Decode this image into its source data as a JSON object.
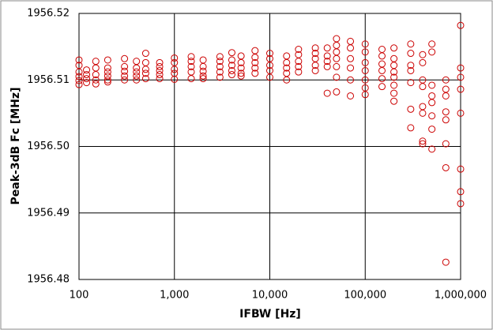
{
  "chart_data": {
    "type": "scatter",
    "xlabel": "IFBW [Hz]",
    "ylabel": "Peak-3dB Fc [MHz]",
    "xscale": "log",
    "grid": true,
    "xlim": [
      100,
      1000000
    ],
    "xticks": [
      100,
      {
        "value": 1000,
        "label": "1,000"
      },
      {
        "value": 10000,
        "label": "10,000"
      },
      {
        "value": 100000,
        "label": "100,000"
      },
      {
        "value": 1000000,
        "label": "1,000,000"
      }
    ],
    "ylim": [
      1956.48,
      1956.52
    ],
    "yticks": [
      1956.48,
      1956.49,
      {
        "value": 1956.5,
        "label": "1956.50"
      },
      1956.51,
      1956.52
    ],
    "series": [
      {
        "color": "#cc0000",
        "x": [
          100,
          100,
          100,
          100,
          100,
          100,
          120,
          120,
          120,
          120,
          150,
          150,
          150,
          150,
          150,
          200,
          200,
          200,
          200,
          200,
          200,
          300,
          300,
          300,
          300,
          300,
          400,
          400,
          400,
          400,
          400,
          500,
          500,
          500,
          500,
          500,
          700,
          700,
          700,
          700,
          700,
          1000,
          1000,
          1000,
          1000,
          1000,
          1500,
          1500,
          1500,
          1500,
          1500,
          2000,
          2000,
          2000,
          2000,
          2000,
          3000,
          3000,
          3000,
          3000,
          3000,
          4000,
          4000,
          4000,
          4000,
          4000,
          5000,
          5000,
          5000,
          5000,
          5000,
          7000,
          7000,
          7000,
          7000,
          7000,
          10000,
          10000,
          10000,
          10000,
          10000,
          15000,
          15000,
          15000,
          15000,
          15000,
          20000,
          20000,
          20000,
          20000,
          20000,
          30000,
          30000,
          30000,
          30000,
          30000,
          40000,
          40000,
          40000,
          40000,
          40000,
          50000,
          50000,
          50000,
          50000,
          50000,
          50000,
          50000,
          70000,
          70000,
          70000,
          70000,
          70000,
          70000,
          100000,
          100000,
          100000,
          100000,
          100000,
          100000,
          100000,
          150000,
          150000,
          150000,
          150000,
          150000,
          150000,
          200000,
          200000,
          200000,
          200000,
          200000,
          200000,
          200000,
          200000,
          300000,
          300000,
          300000,
          300000,
          300000,
          300000,
          300000,
          400000,
          400000,
          400000,
          400000,
          400000,
          400000,
          400000,
          400000,
          500000,
          500000,
          500000,
          500000,
          500000,
          500000,
          500000,
          500000,
          700000,
          700000,
          700000,
          700000,
          700000,
          700000,
          700000,
          700000,
          1000000,
          1000000,
          1000000,
          1000000,
          1000000,
          1000000,
          1000000,
          1000000
        ],
        "values": [
          1956.513,
          1956.5122,
          1956.5112,
          1956.5105,
          1956.5099,
          1956.5093,
          1956.5115,
          1956.5108,
          1956.5102,
          1956.5096,
          1956.5128,
          1956.5118,
          1956.5108,
          1956.51,
          1956.5094,
          1956.513,
          1956.5118,
          1956.5112,
          1956.5106,
          1956.51,
          1956.5097,
          1956.5132,
          1956.512,
          1956.5113,
          1956.5106,
          1956.51,
          1956.5128,
          1956.5118,
          1956.5112,
          1956.5106,
          1956.51,
          1956.514,
          1956.5126,
          1956.5116,
          1956.511,
          1956.5102,
          1956.5126,
          1956.512,
          1956.5114,
          1956.5108,
          1956.5102,
          1956.5133,
          1956.5126,
          1956.5116,
          1956.511,
          1956.5101,
          1956.5135,
          1956.5128,
          1956.512,
          1956.5112,
          1956.5102,
          1956.513,
          1956.512,
          1956.5113,
          1956.5106,
          1956.5102,
          1956.5135,
          1956.5128,
          1956.512,
          1956.5112,
          1956.5104,
          1956.5141,
          1956.513,
          1956.5122,
          1956.5114,
          1956.5108,
          1956.5136,
          1956.5126,
          1956.5118,
          1956.511,
          1956.5106,
          1956.5144,
          1956.5134,
          1956.5126,
          1956.5118,
          1956.511,
          1956.514,
          1956.5132,
          1956.5122,
          1956.5114,
          1956.5104,
          1956.5136,
          1956.5126,
          1956.5118,
          1956.511,
          1956.51,
          1956.5146,
          1956.5138,
          1956.5128,
          1956.512,
          1956.5112,
          1956.5148,
          1956.514,
          1956.5132,
          1956.5122,
          1956.5114,
          1956.5148,
          1956.5136,
          1956.5128,
          1956.512,
          1956.508,
          1956.5162,
          1956.5152,
          1956.5142,
          1956.5132,
          1956.512,
          1956.5104,
          1956.5082,
          1956.5158,
          1956.5148,
          1956.5132,
          1956.5118,
          1956.51,
          1956.5076,
          1956.5154,
          1956.5142,
          1956.5126,
          1956.5114,
          1956.51,
          1956.5088,
          1956.5078,
          1956.5146,
          1956.5136,
          1956.5124,
          1956.5114,
          1956.5102,
          1956.509,
          1956.5148,
          1956.5132,
          1956.5122,
          1956.5112,
          1956.5104,
          1956.5092,
          1956.508,
          1956.5068,
          1956.5154,
          1956.514,
          1956.5122,
          1956.5114,
          1956.5096,
          1956.5056,
          1956.5028,
          1956.5138,
          1956.5126,
          1956.51,
          1956.509,
          1956.506,
          1956.505,
          1956.5008,
          1956.5004,
          1956.5154,
          1956.5142,
          1956.5092,
          1956.5076,
          1956.5066,
          1956.5046,
          1956.5026,
          1956.4996,
          1956.51,
          1956.5086,
          1956.5076,
          1956.5052,
          1956.504,
          1956.5004,
          1956.4968,
          1956.4826,
          1956.5182,
          1956.5118,
          1956.5104,
          1956.5086,
          1956.505,
          1956.4966,
          1956.4932,
          1956.4914
        ]
      }
    ]
  }
}
